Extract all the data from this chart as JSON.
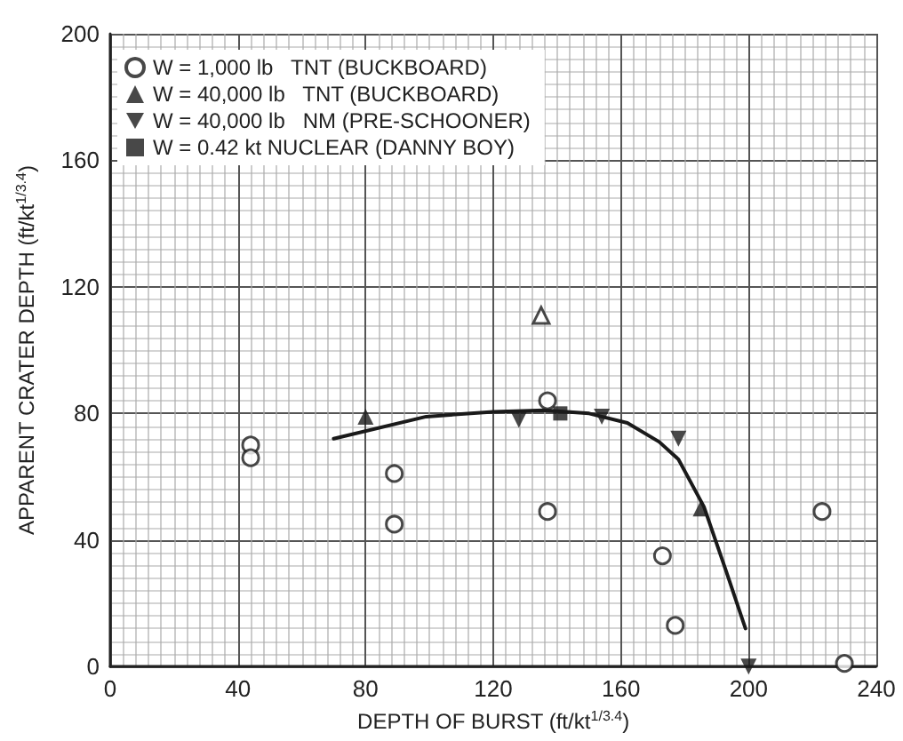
{
  "chart_data": {
    "type": "scatter",
    "xlabel": "DEPTH OF BURST (ft/kt$^{1/3.4}$)",
    "ylabel": "APPARENT CRATER DEPTH (ft/kt$^{1/3.4}$)",
    "xlim": [
      0,
      240
    ],
    "xticks": [
      0,
      40,
      80,
      120,
      160,
      200,
      240
    ],
    "ylim": [
      0,
      200
    ],
    "yticks": [
      0,
      40,
      80,
      120,
      160,
      200
    ],
    "grid": true,
    "legend": "top left",
    "series": [
      {
        "name": "W = 1,000 lb   TNT (BUCKBOARD)",
        "color": "#1a1a1a",
        "marker": "circle-open",
        "x": [
          44,
          44,
          89,
          89,
          137,
          137,
          173,
          177,
          223,
          230
        ],
        "values": [
          70,
          66,
          61,
          45,
          84,
          49,
          35,
          13,
          49,
          1
        ]
      },
      {
        "name": "W = 40,000 lb   TNT (BUCKBOARD)",
        "color": "#1a1a1a",
        "marker": "triangle",
        "x": [
          80,
          185
        ],
        "values": [
          79,
          50
        ]
      },
      {
        "name": "W = 40,000 lb   NM (PRE-SCHOONER)",
        "color": "#1a1a1a",
        "marker": "triangle-down",
        "x": [
          128,
          154,
          178,
          200
        ],
        "values": [
          78,
          79,
          72,
          0
        ]
      },
      {
        "name": "W = 0.42 kt NUCLEAR (DANNY BOY)",
        "color": "#1a1a1a",
        "marker": "square",
        "x": [
          141
        ],
        "values": [
          80
        ]
      },
      {
        "color": "#1a1a1a",
        "marker": "triangle-open",
        "x": [
          135
        ],
        "values": [
          111
        ]
      },
      {
        "type": "line",
        "color": "#1a1a1a",
        "marker": "none",
        "x": [
          70,
          99,
          120,
          136,
          150,
          162,
          172,
          178,
          186,
          193,
          199
        ],
        "values": [
          72,
          79,
          80.5,
          81,
          80,
          77,
          71,
          65.5,
          50.5,
          30,
          12
        ]
      }
    ]
  }
}
